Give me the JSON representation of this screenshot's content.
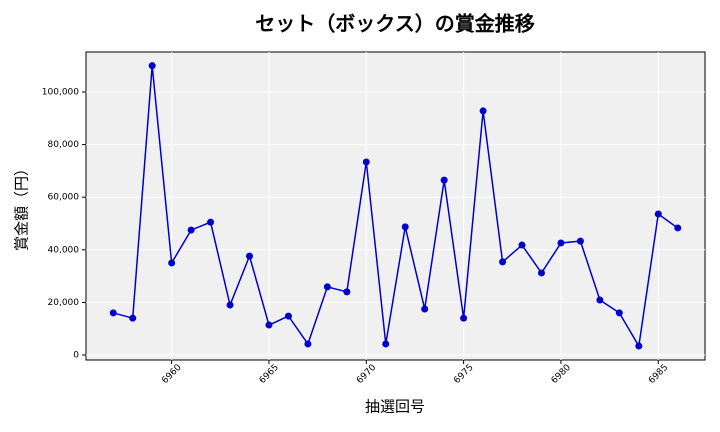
{
  "chart_data": {
    "type": "line",
    "title": "セット（ボックス）の賞金推移",
    "x_label": "抽選回号",
    "y_label": "賞金額（円）",
    "x": [
      6957,
      6958,
      6959,
      6960,
      6961,
      6962,
      6963,
      6964,
      6965,
      6966,
      6967,
      6968,
      6969,
      6970,
      6971,
      6972,
      6973,
      6974,
      6975,
      6976,
      6977,
      6978,
      6979,
      6980,
      6981,
      6982,
      6983,
      6984,
      6985,
      6986
    ],
    "series": [
      {
        "name": "賞金",
        "color": "#0000cc",
        "values": [
          16000,
          14000,
          110000,
          35000,
          47500,
          50500,
          19000,
          37600,
          11400,
          14800,
          4200,
          25900,
          24000,
          73400,
          4200,
          48700,
          17500,
          66500,
          14000,
          92800,
          35400,
          41800,
          31200,
          42600,
          43300,
          20900,
          16000,
          3400,
          53600,
          48300
        ]
      }
    ],
    "xlim": [
      6955.6,
      6987.4
    ],
    "xticks": [
      6960,
      6965,
      6970,
      6975,
      6980,
      6985
    ],
    "ylim": [
      -1900,
      115200
    ],
    "yticks": [
      0,
      {
        "value": 20000,
        "label": "20,000"
      },
      {
        "value": 40000,
        "label": "40,000"
      },
      {
        "value": 60000,
        "label": "60,000"
      },
      {
        "value": 80000,
        "label": "80,000"
      },
      {
        "value": 100000,
        "label": "100,000"
      }
    ],
    "grid": true
  }
}
